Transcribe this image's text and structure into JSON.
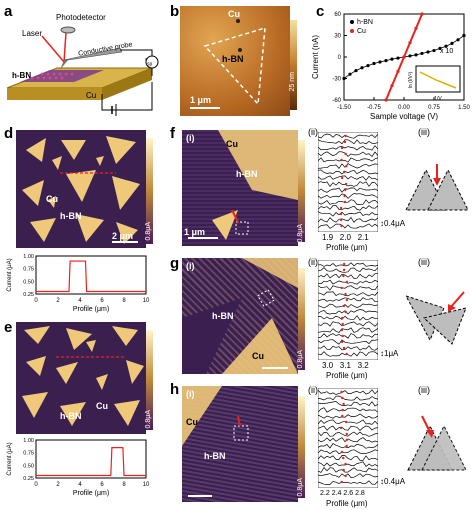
{
  "panel_a": {
    "letter": "a",
    "labels": {
      "laser": "Laser",
      "photodetector": "Photodetector",
      "probe": "Conductive probe",
      "hbn": "h-BN",
      "cu": "Cu",
      "current": "I",
      "current_sub": "sp"
    }
  },
  "panel_b": {
    "letter": "b",
    "cu": "Cu",
    "hbn": "h-BN",
    "scale": "1 μm",
    "colorbar": "25 nm"
  },
  "panel_c": {
    "letter": "c",
    "legend": [
      "h-BN",
      "Cu"
    ],
    "x10": "x 10",
    "xlabel": "Sample voltage (V)",
    "ylabel": "Current (nA)",
    "inset_xlabel": "1/V",
    "inset_ylabel": "ln (I/V²)"
  },
  "chart_data": [
    {
      "type": "scatter",
      "title": "",
      "xlabel": "Sample voltage (V)",
      "ylabel": "Current (nA)",
      "xlim": [
        -1.5,
        1.5
      ],
      "ylim": [
        -60,
        60
      ],
      "xticks": [
        "-1.50",
        "-0.75",
        "0.00",
        "0.75",
        "1.50"
      ],
      "yticks": [
        "-60",
        "-30",
        "0",
        "30",
        "60"
      ],
      "series": [
        {
          "name": "h-BN",
          "color": "#000000",
          "x": [
            -1.5,
            -1.35,
            -1.2,
            -1.05,
            -0.9,
            -0.75,
            -0.6,
            -0.45,
            -0.3,
            -0.15,
            0,
            0.15,
            0.3,
            0.45,
            0.6,
            0.75,
            0.9,
            1.05,
            1.2,
            1.35,
            1.5
          ],
          "y": [
            -30,
            -24,
            -19,
            -15,
            -12,
            -9,
            -7,
            -5,
            -3,
            -1.5,
            0,
            1.5,
            3,
            5,
            7,
            9,
            12,
            15,
            19,
            24,
            30
          ]
        },
        {
          "name": "Cu",
          "color": "#e8231d",
          "x": [
            -0.45,
            -0.3,
            -0.15,
            0,
            0.15,
            0.3,
            0.45
          ],
          "y": [
            -60,
            -40,
            -20,
            0,
            20,
            40,
            60
          ]
        }
      ]
    },
    {
      "type": "line",
      "xlabel": "Profile (μm)",
      "ylabel": "Current (μA)",
      "xticks": [
        "0",
        "2",
        "4",
        "6",
        "8",
        "10"
      ],
      "yticks": [
        "0.25",
        "0.50",
        "0.75",
        "1.00"
      ],
      "ylim": [
        0.25,
        1.0
      ],
      "series": [
        {
          "color": "#e8231d",
          "x": [
            0,
            2.5,
            3.0,
            3.1,
            4.5,
            4.6,
            10
          ],
          "y": [
            0.3,
            0.3,
            0.3,
            0.9,
            0.9,
            0.3,
            0.3
          ]
        }
      ]
    },
    {
      "type": "line",
      "xlabel": "Profile (μm)",
      "ylabel": "Current (μA)",
      "xticks": [
        "0",
        "2",
        "4",
        "6",
        "8",
        "10"
      ],
      "yticks": [
        "0.25",
        "0.50",
        "0.75",
        "1.00"
      ],
      "ylim": [
        0.25,
        1.0
      ],
      "series": [
        {
          "color": "#e8231d",
          "x": [
            0,
            6.8,
            6.9,
            7.9,
            8.0,
            10
          ],
          "y": [
            0.3,
            0.3,
            0.85,
            0.85,
            0.3,
            0.3
          ]
        }
      ]
    }
  ],
  "panel_d": {
    "letter": "d",
    "cu": "Cu",
    "hbn": "h-BN",
    "scale": "2 μm",
    "cbar": "0.8μA",
    "xlabel": "Profile (μm)",
    "ylabel": "Current (μA)"
  },
  "panel_e": {
    "letter": "e",
    "cu": "Cu",
    "hbn": "h-BN",
    "cbar": "0.8μA",
    "xlabel": "Profile (μm)",
    "ylabel": "Current (μA)"
  },
  "panel_f": {
    "letter": "f",
    "i": "(i)",
    "ii": "(ii)",
    "iii": "(iii)",
    "cu": "Cu",
    "hbn": "h-BN",
    "scale": "1 μm",
    "cbar": "0.8μA",
    "xticks": [
      "1.9",
      "2.0",
      "2.1"
    ],
    "xlabel": "Profile (μm)",
    "current": "0.4μA"
  },
  "panel_g": {
    "letter": "g",
    "i": "(i)",
    "ii": "(ii)",
    "iii": "(iii)",
    "cu": "Cu",
    "hbn": "h-BN",
    "cbar": "0.8μA",
    "xticks": [
      "3.0",
      "3.1",
      "3.2"
    ],
    "xlabel": "Profile (μm)",
    "current": "1μA"
  },
  "panel_h": {
    "letter": "h",
    "i": "(i)",
    "ii": "(ii)",
    "iii": "(iii)",
    "cu": "Cu",
    "hbn": "h-BN",
    "cbar": "0.8μA",
    "xticks": [
      "2.2",
      "2.4",
      "2.6",
      "2.8"
    ],
    "xlabel": "Profile (μm)",
    "current": "0.4μA"
  }
}
